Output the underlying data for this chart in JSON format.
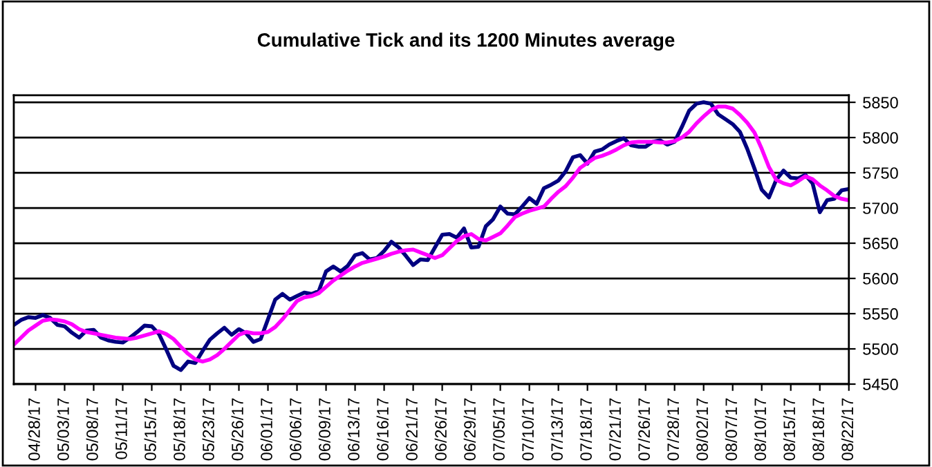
{
  "chart_data": {
    "type": "line",
    "title": "Cumulative Tick and its 1200 Minutes average",
    "categories": [
      null,
      null,
      null,
      "04/28/17",
      null,
      null,
      null,
      "05/03/17",
      null,
      null,
      null,
      "05/08/17",
      null,
      null,
      null,
      "05/11/17",
      null,
      null,
      null,
      "05/15/17",
      null,
      null,
      null,
      "05/18/17",
      null,
      null,
      null,
      "05/23/17",
      null,
      null,
      null,
      "05/26/17",
      null,
      null,
      null,
      "06/01/17",
      null,
      null,
      null,
      "06/06/17",
      null,
      null,
      null,
      "06/09/17",
      null,
      null,
      null,
      "06/13/17",
      null,
      null,
      null,
      "06/16/17",
      null,
      null,
      null,
      "06/21/17",
      null,
      null,
      null,
      "06/26/17",
      null,
      null,
      null,
      "06/29/17",
      null,
      null,
      null,
      "07/05/17",
      null,
      null,
      null,
      "07/10/17",
      null,
      null,
      null,
      "07/13/17",
      null,
      null,
      null,
      "07/18/17",
      null,
      null,
      null,
      "07/21/17",
      null,
      null,
      null,
      "07/26/17",
      null,
      null,
      null,
      "07/28/17",
      null,
      null,
      null,
      "08/02/17",
      null,
      null,
      null,
      "08/07/17",
      null,
      null,
      null,
      "08/10/17",
      null,
      null,
      null,
      "08/15/17",
      null,
      null,
      null,
      "08/18/17",
      null,
      null,
      null,
      "08/22/17"
    ],
    "ylim": [
      5450,
      5860
    ],
    "yticks": [
      5450,
      5500,
      5550,
      5600,
      5650,
      5700,
      5750,
      5800,
      5850
    ],
    "grid": "y",
    "marker": "none",
    "line_style": "solid",
    "series": [
      {
        "color": "#000080",
        "values": [
          5534,
          5541,
          5545,
          5544,
          5548,
          5544,
          5534,
          5532,
          5523,
          5516,
          5526,
          5527,
          5516,
          5512,
          5510,
          5509,
          5516,
          5524,
          5533,
          5532,
          5521,
          5499,
          5476,
          5470,
          5482,
          5480,
          5497,
          5513,
          5522,
          5530,
          5520,
          5528,
          5522,
          5510,
          5514,
          5542,
          5570,
          5578,
          5570,
          5575,
          5580,
          5578,
          5582,
          5610,
          5617,
          5610,
          5618,
          5633,
          5636,
          5627,
          5629,
          5639,
          5652,
          5644,
          5632,
          5619,
          5627,
          5626,
          5644,
          5662,
          5663,
          5658,
          5671,
          5644,
          5645,
          5674,
          5684,
          5702,
          5692,
          5691,
          5702,
          5714,
          5706,
          5728,
          5733,
          5739,
          5752,
          5772,
          5775,
          5763,
          5780,
          5783,
          5790,
          5795,
          5799,
          5789,
          5787,
          5787,
          5794,
          5796,
          5790,
          5794,
          5815,
          5838,
          5848,
          5850,
          5848,
          5833,
          5826,
          5819,
          5808,
          5784,
          5756,
          5726,
          5715,
          5740,
          5753,
          5743,
          5742,
          5747,
          5735,
          5694,
          5711,
          5713,
          5725,
          5727
        ]
      },
      {
        "color": "#ff00ff",
        "values": [
          5506,
          5516,
          5526,
          5533,
          5540,
          5542,
          5541,
          5539,
          5535,
          5528,
          5524,
          5522,
          5520,
          5518,
          5516,
          5515,
          5514,
          5516,
          5519,
          5522,
          5525,
          5521,
          5514,
          5503,
          5493,
          5485,
          5482,
          5485,
          5491,
          5500,
          5510,
          5520,
          5524,
          5522,
          5522,
          5524,
          5531,
          5542,
          5555,
          5568,
          5573,
          5575,
          5579,
          5588,
          5597,
          5604,
          5611,
          5617,
          5622,
          5625,
          5628,
          5631,
          5635,
          5638,
          5640,
          5641,
          5637,
          5633,
          5629,
          5633,
          5643,
          5653,
          5660,
          5663,
          5656,
          5654,
          5659,
          5664,
          5675,
          5687,
          5692,
          5696,
          5699,
          5702,
          5713,
          5723,
          5731,
          5743,
          5757,
          5764,
          5771,
          5774,
          5778,
          5783,
          5789,
          5793,
          5794,
          5794,
          5794,
          5793,
          5793,
          5795,
          5800,
          5808,
          5820,
          5830,
          5839,
          5844,
          5844,
          5841,
          5832,
          5821,
          5807,
          5784,
          5758,
          5740,
          5735,
          5732,
          5738,
          5745,
          5741,
          5732,
          5725,
          5717,
          5713,
          5711
        ]
      }
    ]
  }
}
